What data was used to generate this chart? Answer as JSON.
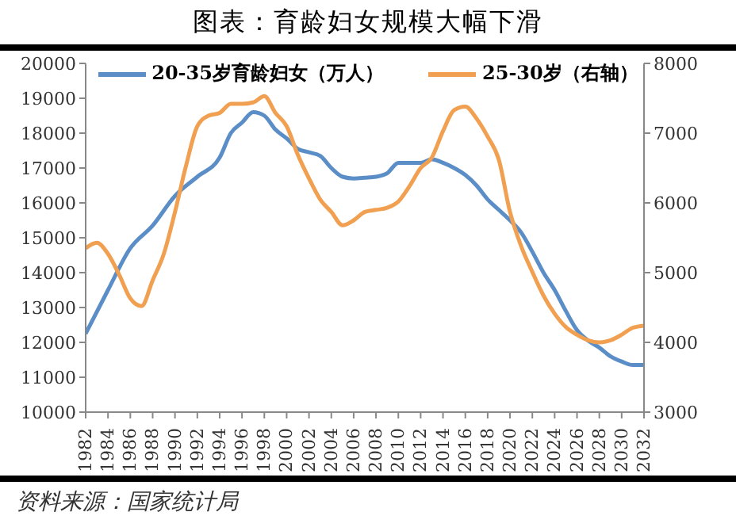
{
  "chart_data": {
    "type": "line",
    "title": "图表：育龄妇女规模大幅下滑",
    "annotations": [
      "资料来源：国家统计局"
    ],
    "xlim": [
      1982,
      2032
    ],
    "xticks": [
      1982,
      1984,
      1986,
      1988,
      1990,
      1992,
      1994,
      1996,
      1998,
      2000,
      2002,
      2004,
      2006,
      2008,
      2010,
      2012,
      2014,
      2016,
      2018,
      2020,
      2022,
      2024,
      2026,
      2028,
      2030,
      2032
    ],
    "ylim": [
      10000,
      20000
    ],
    "yticks": [
      10000,
      11000,
      12000,
      13000,
      14000,
      15000,
      16000,
      17000,
      18000,
      19000,
      20000
    ],
    "y2lim": [
      3000,
      8000
    ],
    "y2ticks": [
      3000,
      4000,
      5000,
      6000,
      7000,
      8000
    ],
    "grid": false,
    "legend": "top",
    "marker": "none",
    "line_style": "solid",
    "series": [
      {
        "name": "20-35岁育龄妇女（万人）",
        "color": "#5b8ec7",
        "x": [
          1982,
          1984,
          1986,
          1988,
          1990,
          1992,
          1994,
          1995,
          1996,
          1997,
          1998,
          1999,
          2000,
          2001,
          2002,
          2003,
          2004,
          2005,
          2006,
          2007,
          2008,
          2009,
          2010,
          2011,
          2012,
          2013,
          2014,
          2015,
          2016,
          2017,
          2018,
          2019,
          2020,
          2021,
          2022,
          2023,
          2024,
          2025,
          2026,
          2027,
          2028,
          2029,
          2030,
          2031,
          2032
        ],
        "values": [
          12250,
          13500,
          14700,
          15350,
          16200,
          16750,
          17300,
          18000,
          18300,
          18600,
          18500,
          18100,
          17850,
          17550,
          17450,
          17350,
          17000,
          16750,
          16700,
          16720,
          16750,
          16850,
          17150,
          17150,
          17150,
          17250,
          17150,
          17000,
          16800,
          16500,
          16100,
          15800,
          15500,
          15150,
          14600,
          14000,
          13500,
          12900,
          12350,
          12050,
          11850,
          11600,
          11450,
          11350,
          11350
        ]
      },
      {
        "name": "25-30岁（右轴）",
        "color": "#f0a050",
        "axis": "y2",
        "x": [
          1982,
          1983,
          1984,
          1985,
          1986,
          1987,
          1988,
          1989,
          1990,
          1991,
          1992,
          1993,
          1994,
          1995,
          1996,
          1997,
          1998,
          1999,
          2000,
          2001,
          2002,
          2003,
          2004,
          2005,
          2006,
          2007,
          2008,
          2009,
          2010,
          2011,
          2012,
          2013,
          2014,
          2015,
          2016,
          2017,
          2018,
          2019,
          2020,
          2021,
          2022,
          2023,
          2024,
          2025,
          2026,
          2027,
          2028,
          2029,
          2030,
          2031,
          2032
        ],
        "values": [
          5350,
          5430,
          5270,
          4970,
          4630,
          4520,
          4890,
          5270,
          5870,
          6540,
          7100,
          7250,
          7290,
          7420,
          7420,
          7440,
          7530,
          7290,
          7100,
          6690,
          6350,
          6050,
          5870,
          5680,
          5750,
          5870,
          5900,
          5930,
          6020,
          6240,
          6500,
          6650,
          7030,
          7330,
          7380,
          7210,
          6950,
          6620,
          5870,
          5380,
          5010,
          4670,
          4410,
          4220,
          4110,
          4030,
          4000,
          4030,
          4110,
          4210,
          4240
        ]
      }
    ]
  }
}
